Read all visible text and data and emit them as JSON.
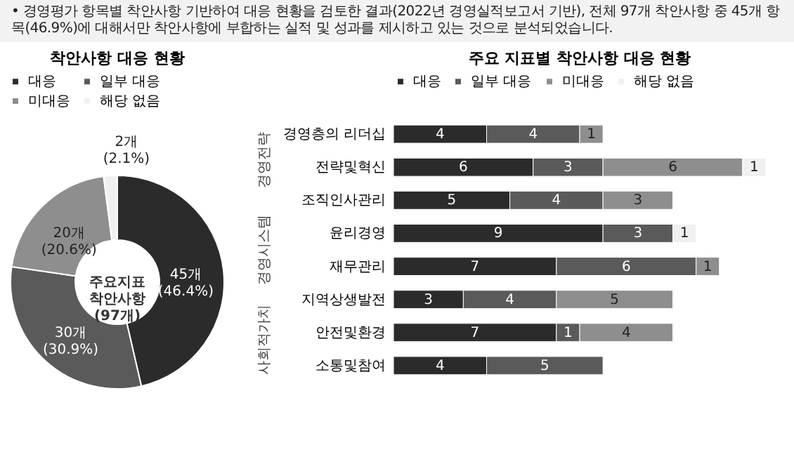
{
  "chart_data": [
    {
      "type": "donut",
      "title": "착안사항 대응 현황",
      "categories": [
        "대응",
        "일부 대응",
        "미대응",
        "해당 없음"
      ],
      "values": [
        45,
        30,
        20,
        2
      ],
      "colors": [
        "#2b2b2b",
        "#5a5a5a",
        "#8e8e8e",
        "#f0f0f0"
      ],
      "value_labels": [
        "45개\n(46.4%)",
        "30개\n(30.9%)",
        "20개\n(20.6%)",
        "2개\n(2.1%)"
      ],
      "legend": "top",
      "annotations": [
        "• 경영평가 항목별 착안사항 기반하여 대응 현황을 검토한 결과(2022년 경영실적보고서 기반), 전체 97개 착안사항 중 45개 항목(46.9%)에 대해서만 착안사항에 부합하는 실적 및 성과를 제시하고 있는 것으로 분석되었습니다.",
        "주요지표\n착안사항\n(97개)"
      ]
    },
    {
      "type": "bar",
      "orientation": "horizontal",
      "stacked": true,
      "data_labels": true,
      "tick_labels": "y",
      "title": "주요 지표별 착안사항 대응 현황",
      "legend": "top",
      "categories": [
        "경영층의 리더십",
        "전략및혁신",
        "조직인사관리",
        "윤리경영",
        "재무관리",
        "지역상생발전",
        "안전및환경",
        "소통및참여"
      ],
      "series": [
        {
          "name": "대응",
          "color": "#2b2b2b",
          "values": [
            4,
            6,
            5,
            9,
            7,
            3,
            7,
            4
          ]
        },
        {
          "name": "일부 대응",
          "color": "#5a5a5a",
          "values": [
            4,
            3,
            4,
            3,
            6,
            4,
            1,
            5
          ]
        },
        {
          "name": "미대응",
          "color": "#8e8e8e",
          "values": [
            1,
            6,
            3,
            null,
            1,
            5,
            4,
            null
          ]
        },
        {
          "name": "해당 없음",
          "color": "#f0f0f0",
          "values": [
            null,
            1,
            null,
            1,
            null,
            null,
            null,
            null
          ]
        }
      ],
      "annotations": [
        "경영전략",
        "경영시스템",
        "사회적가치"
      ]
    }
  ]
}
